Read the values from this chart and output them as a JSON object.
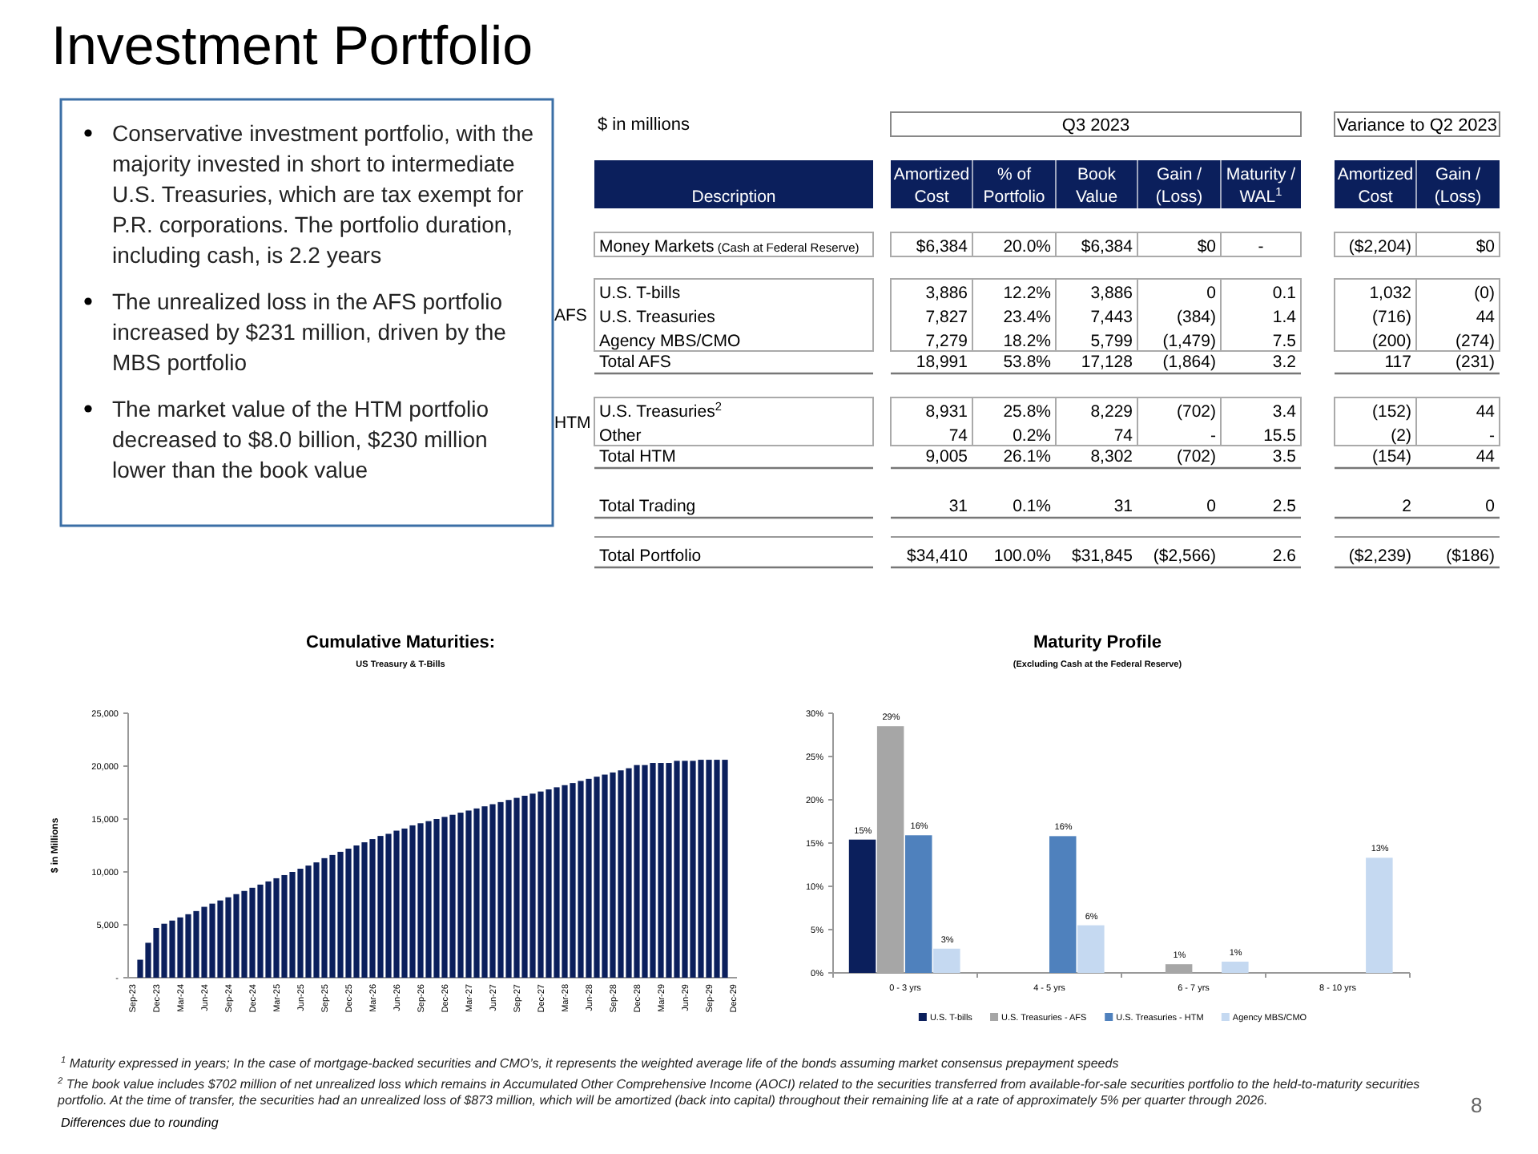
{
  "chart_data": [
    {
      "type": "other",
      "title": "Investment Portfolio",
      "annotations": [
        "Conservative investment portfolio, with the majority invested in short to intermediate U.S. Treasuries, which are tax exempt for P.R. corporations. The portfolio duration, including cash, is 2.2 years",
        "The unrealized loss in the AFS portfolio increased by $231 million, driven by the MBS portfolio",
        "The market value of the HTM portfolio decreased to $8.0 billion, $230 million lower than the book value",
        "$^{1}$ Maturity expressed in years; In the case of mortgage-backed securities and CMO’s, it represents the weighted average life of the bonds assuming market consensus prepayment speeds",
        "$^{2}$ The book value includes $702 million of net unrealized loss which remains in Accumulated Other Comprehensive Income (AOCI) related to the securities transferred from available-for-sale securities portfolio to the held-to-maturity securities portfolio. At the time of transfer, the securities had an unrealized loss of $873 million, which will be amortized (back into capital) throughout their remaining life at a rate of approximately 5% per quarter through 2026.",
        "Differences due to rounding",
        "8"
      ]
    },
    {
      "type": "other",
      "annotations": [
        "$ in millions",
        "Q3 2023",
        "Variance to Q2 2023",
        "Description",
        "Amortized Cost",
        "% of Portfolio",
        "Book Value",
        "Gain / (Loss)",
        "Maturity / WAL$^{1}$",
        "Amortized Cost",
        "Gain / (Loss)",
        "AFS",
        "HTM",
        "Money Markets (Cash at Federal Reserve)",
        "$6,384",
        "20.0%",
        "$6,384",
        "$0",
        "-",
        "($2,204)",
        "$0",
        "U.S. T-bills",
        "3,886",
        "12.2%",
        "3,886",
        "0",
        "0.1",
        "1,032",
        "(0)",
        "U.S. Treasuries",
        "7,827",
        "23.4%",
        "7,443",
        "(384)",
        "1.4",
        "(716)",
        "44",
        "Agency MBS/CMO",
        "7,279",
        "18.2%",
        "5,799",
        "(1,479)",
        "7.5",
        "(200)",
        "(274)",
        "Total AFS",
        "18,991",
        "53.8%",
        "17,128",
        "(1,864)",
        "3.2",
        "117",
        "(231)",
        "U.S. Treasuries$^{2}$",
        "8,931",
        "25.8%",
        "8,229",
        "(702)",
        "3.4",
        "(152)",
        "44",
        "Other",
        "74",
        "0.2%",
        "74",
        "-",
        "15.5",
        "(2)",
        "-",
        "Total HTM",
        "9,005",
        "26.1%",
        "8,302",
        "(702)",
        "3.5",
        "(154)",
        "44",
        "Total Trading",
        "31",
        "0.1%",
        "31",
        "0",
        "2.5",
        "2",
        "0",
        "Total Portfolio",
        "$34,410",
        "100.0%",
        "$31,845",
        "($2,566)",
        "2.6",
        "($2,239)",
        "($186)"
      ]
    },
    {
      "type": "bar",
      "title": "Cumulative Maturities:",
      "subtitle": "US Treasury & T-Bills",
      "ylabel": "$ in Millions",
      "categories": [
        "Sep-23",
        null,
        null,
        "Dec-23",
        null,
        null,
        "Mar-24",
        null,
        null,
        "Jun-24",
        null,
        null,
        "Sep-24",
        null,
        null,
        "Dec-24",
        null,
        null,
        "Mar-25",
        null,
        null,
        "Jun-25",
        null,
        null,
        "Sep-25",
        null,
        null,
        "Dec-25",
        null,
        null,
        "Mar-26",
        null,
        null,
        "Jun-26",
        null,
        null,
        "Sep-26",
        null,
        null,
        "Dec-26",
        null,
        null,
        "Mar-27",
        null,
        null,
        "Jun-27",
        null,
        null,
        "Sep-27",
        null,
        null,
        "Dec-27",
        null,
        null,
        "Mar-28",
        null,
        null,
        "Jun-28",
        null,
        null,
        "Sep-28",
        null,
        null,
        "Dec-28",
        null,
        null,
        "Mar-29",
        null,
        null,
        "Jun-29",
        null,
        null,
        "Sep-29",
        null,
        null,
        "Dec-29"
      ],
      "color": "#0b1f5c",
      "values": [
        null,
        1700,
        3300,
        4700,
        5100,
        5400,
        5700,
        6000,
        6300,
        6700,
        7000,
        7300,
        7600,
        7900,
        8200,
        8500,
        8800,
        9100,
        9400,
        9700,
        10000,
        10300,
        10600,
        10900,
        11300,
        11600,
        11900,
        12200,
        12500,
        12800,
        13100,
        13400,
        13600,
        13900,
        14100,
        14400,
        14600,
        14800,
        15000,
        15200,
        15400,
        15600,
        15800,
        16000,
        16200,
        16400,
        16600,
        16800,
        17000,
        17200,
        17400,
        17600,
        17800,
        18000,
        18200,
        18400,
        18600,
        18800,
        19000,
        19200,
        19400,
        19600,
        19800,
        20100,
        20100,
        20300,
        20300,
        20300,
        20500,
        20500,
        20500,
        20600,
        20600,
        20600,
        20600,
        null
      ],
      "ylim": [
        0,
        25000
      ],
      "yticks": [
        {
          "value": 0,
          "label": "-"
        },
        {
          "value": 5000,
          "label": "5,000"
        },
        {
          "value": 10000,
          "label": "10,000"
        },
        {
          "value": 15000,
          "label": "15,000"
        },
        {
          "value": 20000,
          "label": "20,000"
        },
        {
          "value": 25000,
          "label": "25,000"
        }
      ],
      "grid": false
    },
    {
      "type": "bar",
      "title": "Maturity Profile",
      "subtitle": "(Excluding Cash at the Federal Reserve)",
      "categories": [
        "0 - 3 yrs",
        "4 - 5 yrs",
        "6 - 7 yrs",
        "8 - 10 yrs"
      ],
      "series": [
        {
          "name": "U.S. T-bills",
          "color": "#0b1f5c",
          "values": [
            15.4,
            null,
            null,
            null
          ],
          "value_labels": [
            "15%",
            null,
            null,
            null
          ]
        },
        {
          "name": "U.S. Treasuries - AFS",
          "color": "#a6a6a6",
          "values": [
            28.5,
            null,
            1,
            null
          ],
          "value_labels": [
            "29%",
            null,
            "1%",
            null
          ]
        },
        {
          "name": "U.S. Treasuries - HTM",
          "color": "#4f81bd",
          "values": [
            15.9,
            15.8,
            null,
            null
          ],
          "value_labels": [
            "16%",
            "16%",
            null,
            null
          ]
        },
        {
          "name": "Agency MBS/CMO",
          "color": "#c5d9f1",
          "values": [
            2.8,
            5.5,
            1.3,
            13.3
          ],
          "value_labels": [
            "3%",
            "6%",
            "1%",
            "13%"
          ]
        }
      ],
      "ylim": [
        0,
        30
      ],
      "yticks": [
        {
          "value": 0,
          "label": "0%"
        },
        {
          "value": 5,
          "label": "5%"
        },
        {
          "value": 10,
          "label": "10%"
        },
        {
          "value": 15,
          "label": "15%"
        },
        {
          "value": 20,
          "label": "20%"
        },
        {
          "value": 25,
          "label": "25%"
        },
        {
          "value": 30,
          "label": "30%"
        }
      ],
      "grid": false,
      "legend": "bottom"
    }
  ]
}
